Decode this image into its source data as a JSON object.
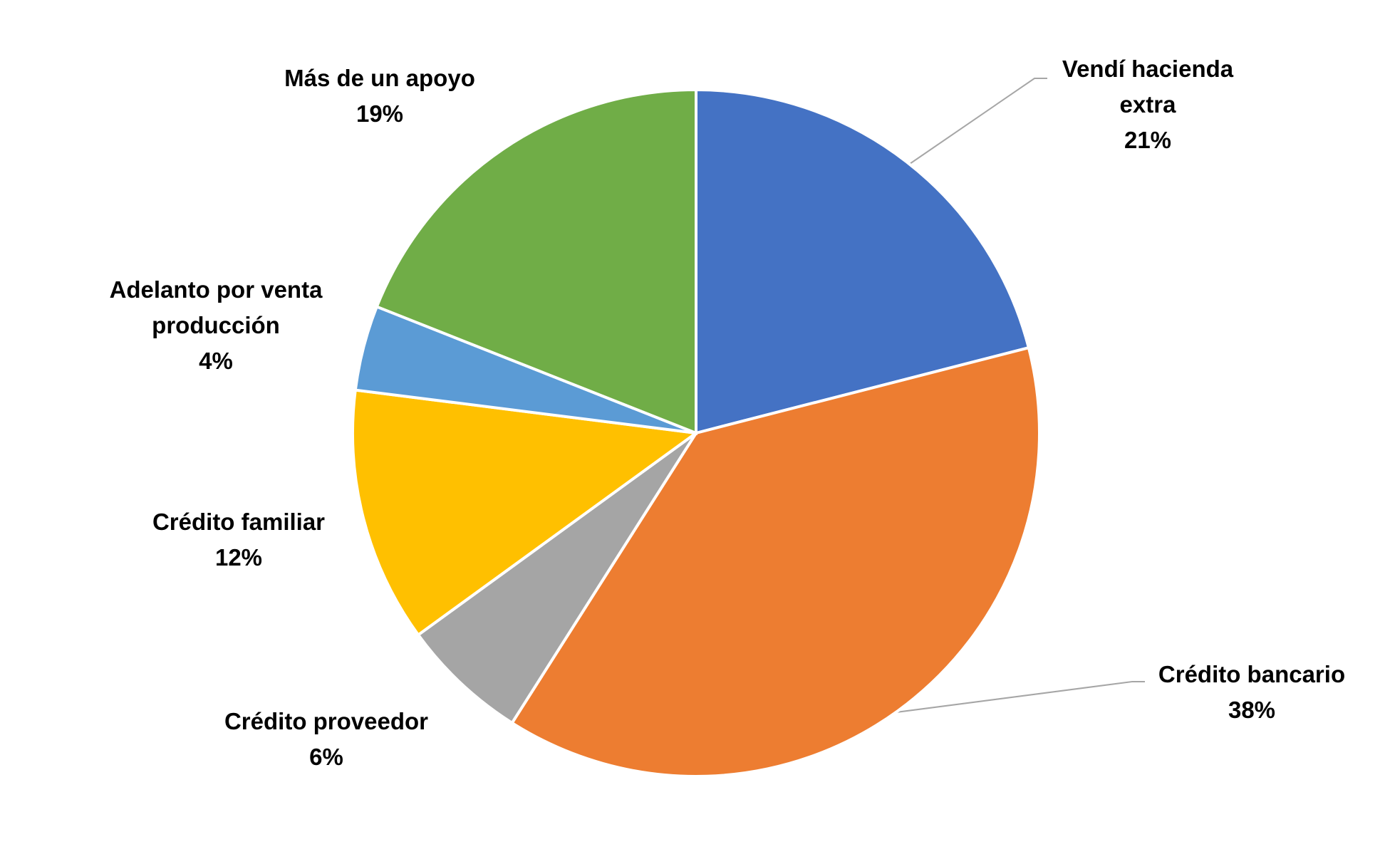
{
  "chart_data": {
    "type": "pie",
    "categories": [
      "Vendí hacienda extra",
      "Crédito bancario",
      "Crédito proveedor",
      "Crédito familiar",
      "Adelanto por venta producción",
      "Más de un apoyo"
    ],
    "values": [
      21,
      38,
      6,
      12,
      4,
      19
    ],
    "value_labels": [
      "21%",
      "38%",
      "6%",
      "12%",
      "4%",
      "19%"
    ],
    "colors": [
      "#4472c4",
      "#ed7d31",
      "#a5a5a5",
      "#ffc000",
      "#5b9bd5",
      "#70ad47"
    ]
  }
}
